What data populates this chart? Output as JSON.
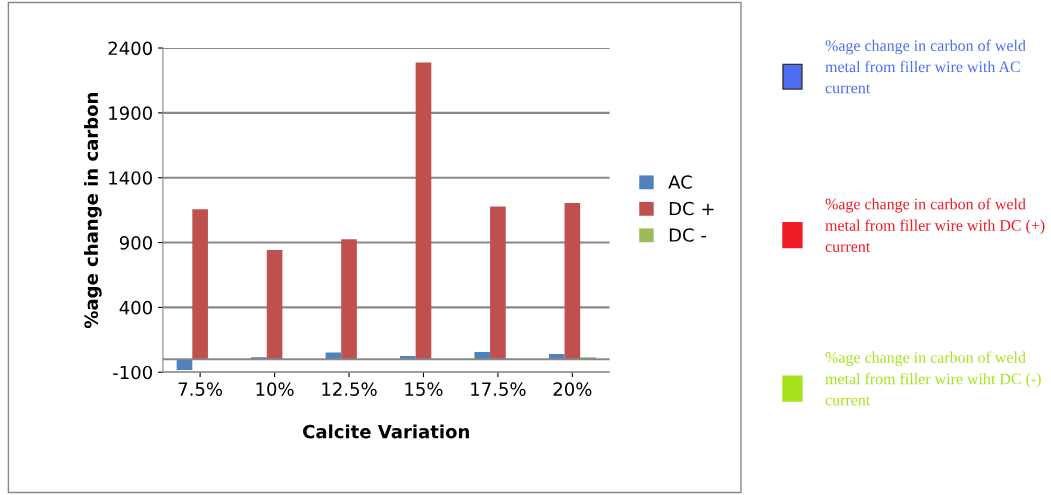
{
  "chart_data": {
    "type": "bar",
    "xlabel": "Calcite Variation",
    "ylabel": "%age change in carbon",
    "categories": [
      "7.5%",
      "10%",
      "12.5%",
      "15%",
      "17.5%",
      "20%"
    ],
    "series": [
      {
        "name": "AC",
        "color": "#4f81bd",
        "values": [
          -82,
          15,
          52,
          26,
          57,
          41
        ]
      },
      {
        "name": "DC +",
        "color": "#c0504d",
        "values": [
          1157,
          843,
          925,
          2289,
          1178,
          1204
        ]
      },
      {
        "name": "DC -",
        "color": "#9bbb59",
        "values": [
          null,
          null,
          null,
          null,
          null,
          15
        ]
      }
    ],
    "ylim": [
      -100,
      2400
    ],
    "yticks": [
      -100,
      400,
      900,
      1400,
      1900,
      2400
    ],
    "grid": "y",
    "legend": "right",
    "annotations": [
      "%age change in carbon of weld metal from filler wire with AC current",
      "%age change in carbon of weld metal from filler wire with DC (+) current",
      "%age change in carbon of weld metal from filler wire wiht DC (-) current"
    ]
  }
}
